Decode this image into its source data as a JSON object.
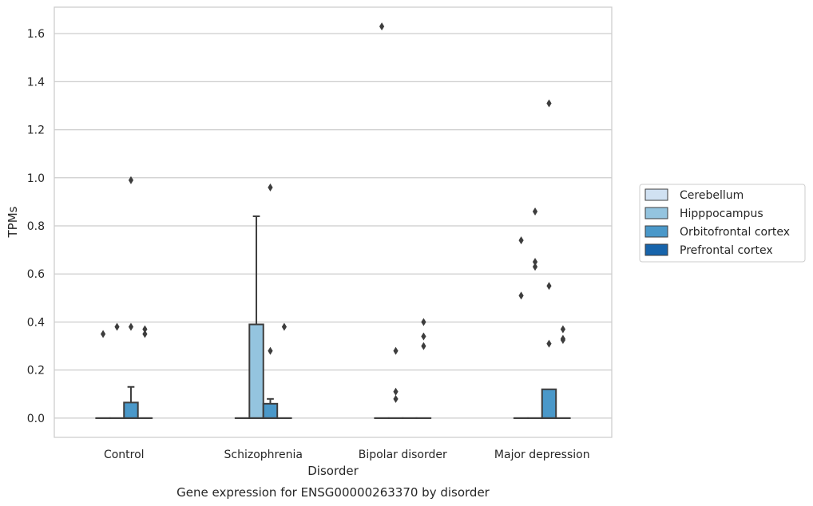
{
  "chart_data": {
    "type": "box",
    "title": "",
    "caption": "Gene expression for ENSG00000263370 by disorder",
    "xlabel": "Disorder",
    "ylabel": "TPMs",
    "ylim": [
      -0.08,
      1.71
    ],
    "yticks": [
      "0.0",
      "0.2",
      "0.4",
      "0.6",
      "0.8",
      "1.0",
      "1.2",
      "1.4",
      "1.6"
    ],
    "ytick_values": [
      0.0,
      0.2,
      0.4,
      0.6,
      0.8,
      1.0,
      1.2,
      1.4,
      1.6
    ],
    "grid": true,
    "legend_placement": "right",
    "categories": [
      "Control",
      "Schizophrenia",
      "Bipolar disorder",
      "Major depression"
    ],
    "series": [
      {
        "name": "Cerebellum",
        "color": "#d0e1f2",
        "boxes": [
          {
            "q1": 0,
            "median": 0,
            "q3": 0,
            "whisker_low": 0,
            "whisker_high": 0,
            "outliers": [
              0.35
            ]
          },
          {
            "q1": 0,
            "median": 0,
            "q3": 0,
            "whisker_low": 0,
            "whisker_high": 0,
            "outliers": []
          },
          {
            "q1": 0,
            "median": 0,
            "q3": 0,
            "whisker_low": 0,
            "whisker_high": 0,
            "outliers": [
              1.63
            ]
          },
          {
            "q1": 0,
            "median": 0,
            "q3": 0,
            "whisker_low": 0,
            "whisker_high": 0,
            "outliers": [
              0.74,
              0.51
            ]
          }
        ]
      },
      {
        "name": "Hipppocampus",
        "color": "#94c4df",
        "boxes": [
          {
            "q1": 0,
            "median": 0,
            "q3": 0,
            "whisker_low": 0,
            "whisker_high": 0,
            "outliers": [
              0.38
            ]
          },
          {
            "q1": 0,
            "median": 0,
            "q3": 0.39,
            "whisker_low": 0,
            "whisker_high": 0.84,
            "outliers": []
          },
          {
            "q1": 0,
            "median": 0,
            "q3": 0,
            "whisker_low": 0,
            "whisker_high": 0,
            "outliers": [
              0.28,
              0.11,
              0.08
            ]
          },
          {
            "q1": 0,
            "median": 0,
            "q3": 0,
            "whisker_low": 0,
            "whisker_high": 0,
            "outliers": [
              0.86,
              0.65,
              0.63
            ]
          }
        ]
      },
      {
        "name": "Orbitofrontal cortex",
        "color": "#4a98c9",
        "boxes": [
          {
            "q1": 0,
            "median": 0,
            "q3": 0.065,
            "whisker_low": 0,
            "whisker_high": 0.13,
            "outliers": [
              0.99,
              0.38
            ]
          },
          {
            "q1": 0,
            "median": 0,
            "q3": 0.06,
            "whisker_low": 0,
            "whisker_high": 0.08,
            "outliers": [
              0.96,
              0.28
            ]
          },
          {
            "q1": 0,
            "median": 0,
            "q3": 0,
            "whisker_low": 0,
            "whisker_high": 0,
            "outliers": []
          },
          {
            "q1": 0,
            "median": 0,
            "q3": 0.12,
            "whisker_low": 0,
            "whisker_high": 0.12,
            "outliers": [
              1.31,
              0.55,
              0.31
            ]
          }
        ]
      },
      {
        "name": "Prefrontal cortex",
        "color": "#1764ab",
        "boxes": [
          {
            "q1": 0,
            "median": 0,
            "q3": 0,
            "whisker_low": 0,
            "whisker_high": 0,
            "outliers": [
              0.37,
              0.35
            ]
          },
          {
            "q1": 0,
            "median": 0,
            "q3": 0,
            "whisker_low": 0,
            "whisker_high": 0,
            "outliers": [
              0.38
            ]
          },
          {
            "q1": 0,
            "median": 0,
            "q3": 0,
            "whisker_low": 0,
            "whisker_high": 0,
            "outliers": [
              0.4,
              0.34,
              0.3
            ]
          },
          {
            "q1": 0,
            "median": 0,
            "q3": 0,
            "whisker_low": 0,
            "whisker_high": 0,
            "outliers": [
              0.37,
              0.33,
              0.325
            ]
          }
        ]
      }
    ]
  }
}
